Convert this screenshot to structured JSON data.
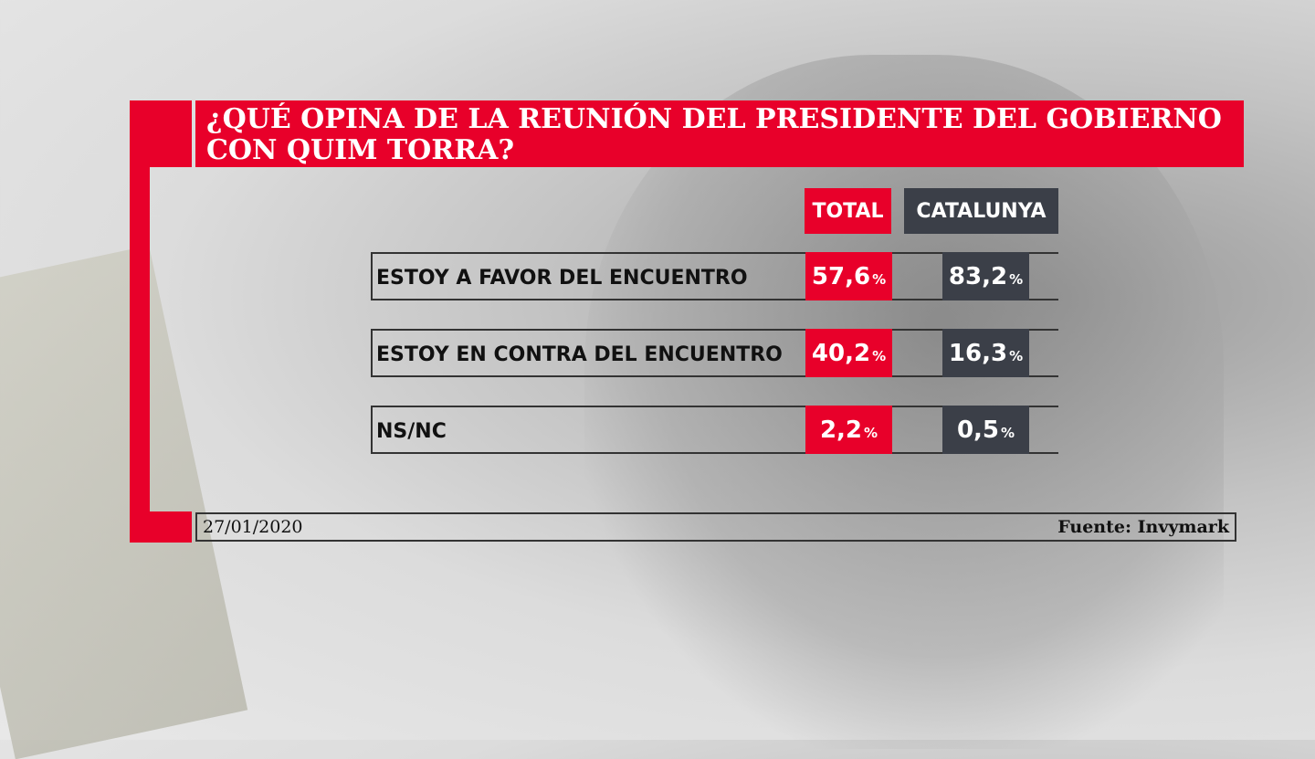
{
  "chart_data": {
    "type": "table",
    "title": "¿QUÉ OPINA DE LA REUNIÓN DEL PRESIDENTE DEL GOBIERNO CON QUIM TORRA?",
    "title_lines": [
      "¿QUÉ OPINA DE LA REUNIÓN DEL PRESIDENTE DEL GOBIERNO",
      "CON QUIM TORRA?"
    ],
    "columns": [
      "TOTAL",
      "CATALUNYA"
    ],
    "unit": "%",
    "rows": [
      {
        "label": "ESTOY A FAVOR DEL ENCUENTRO",
        "total": "57,6",
        "catalunya": "83,2"
      },
      {
        "label": "ESTOY EN CONTRA DEL ENCUENTRO",
        "total": "40,2",
        "catalunya": "16,3"
      },
      {
        "label": "NS/NC",
        "total": "2,2",
        "catalunya": "0,5"
      }
    ],
    "date": "27/01/2020",
    "source": "Fuente: Invymark",
    "colors": {
      "total": "#e8002a",
      "catalunya": "#3b3f48"
    }
  }
}
